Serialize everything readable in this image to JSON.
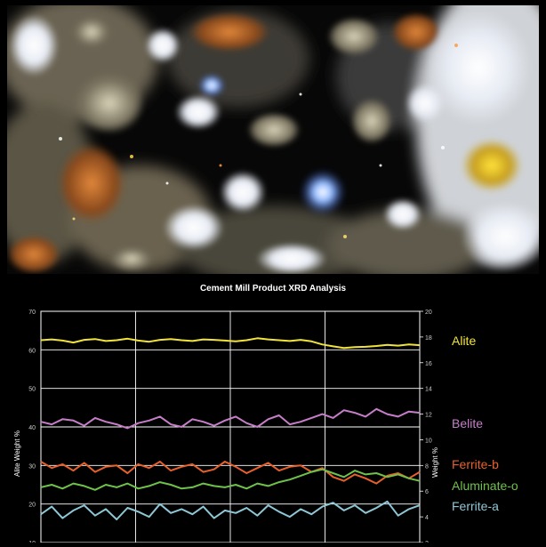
{
  "photo": {
    "description_icon": "cement-clinker-micrograph"
  },
  "chart_data": {
    "type": "line",
    "title": "Cement Mill Product XRD Analysis",
    "ylabel_left": "Alite Weight %",
    "ylabel_right": "Weight %",
    "ylim_left": [
      10,
      70
    ],
    "ylim_right": [
      2,
      20
    ],
    "yticks_left": [
      "10",
      "20",
      "30",
      "40",
      "50",
      "60",
      "70"
    ],
    "yticks_right": [
      "2",
      "4",
      "6",
      "8",
      "10",
      "12",
      "14",
      "16",
      "18",
      "20"
    ],
    "grid": true,
    "legend_placement": "right",
    "series": [
      {
        "name": "Alite",
        "axis": "left",
        "color": "#f2e33a",
        "values": [
          62.5,
          62.7,
          62.4,
          61.9,
          62.6,
          62.8,
          62.3,
          62.5,
          62.9,
          62.4,
          62.1,
          62.6,
          62.8,
          62.5,
          62.3,
          62.7,
          62.6,
          62.4,
          62.2,
          62.5,
          63.0,
          62.7,
          62.5,
          62.3,
          62.6,
          62.2,
          61.4,
          60.9,
          60.5,
          60.7,
          60.8,
          61.0,
          61.3,
          61.1,
          61.4,
          61.2
        ]
      },
      {
        "name": "Belite",
        "axis": "right",
        "color": "#c77ec9",
        "values": [
          11.4,
          11.2,
          11.6,
          11.5,
          11.1,
          11.7,
          11.4,
          11.2,
          10.9,
          11.3,
          11.5,
          11.8,
          11.2,
          11.0,
          11.6,
          11.4,
          11.1,
          11.5,
          11.8,
          11.3,
          11.0,
          11.6,
          11.9,
          11.2,
          11.4,
          11.7,
          12.0,
          11.7,
          12.3,
          12.1,
          11.8,
          12.4,
          12.0,
          11.8,
          12.2,
          12.1
        ]
      },
      {
        "name": "Ferrite-b",
        "axis": "right",
        "color": "#e8602a",
        "values": [
          8.3,
          7.8,
          8.1,
          7.6,
          8.2,
          7.5,
          7.9,
          8.0,
          7.4,
          8.1,
          7.8,
          8.3,
          7.6,
          7.9,
          8.1,
          7.5,
          7.7,
          8.3,
          7.9,
          7.4,
          7.8,
          8.2,
          7.6,
          7.9,
          8.0,
          7.5,
          7.8,
          7.1,
          6.8,
          7.3,
          7.0,
          6.6,
          7.2,
          7.4,
          7.0,
          7.5
        ]
      },
      {
        "name": "Aluminate-o",
        "axis": "right",
        "color": "#6ec24a",
        "values": [
          6.3,
          6.5,
          6.2,
          6.6,
          6.4,
          6.1,
          6.5,
          6.3,
          6.6,
          6.2,
          6.4,
          6.7,
          6.5,
          6.2,
          6.3,
          6.6,
          6.4,
          6.3,
          6.5,
          6.2,
          6.6,
          6.4,
          6.7,
          6.9,
          7.2,
          7.5,
          7.7,
          7.4,
          7.1,
          7.6,
          7.3,
          7.4,
          7.1,
          7.3,
          7.0,
          6.8
        ]
      },
      {
        "name": "Ferrite-a",
        "axis": "right",
        "color": "#8ec7d6",
        "values": [
          4.2,
          4.8,
          3.9,
          4.5,
          4.9,
          4.1,
          4.6,
          3.8,
          4.7,
          4.4,
          4.0,
          5.0,
          4.3,
          4.6,
          4.2,
          4.8,
          3.9,
          4.5,
          4.3,
          4.7,
          4.1,
          4.9,
          4.4,
          4.0,
          4.6,
          4.2,
          4.8,
          5.1,
          4.5,
          4.9,
          4.3,
          4.7,
          5.2,
          4.1,
          4.6,
          4.9
        ]
      }
    ]
  }
}
